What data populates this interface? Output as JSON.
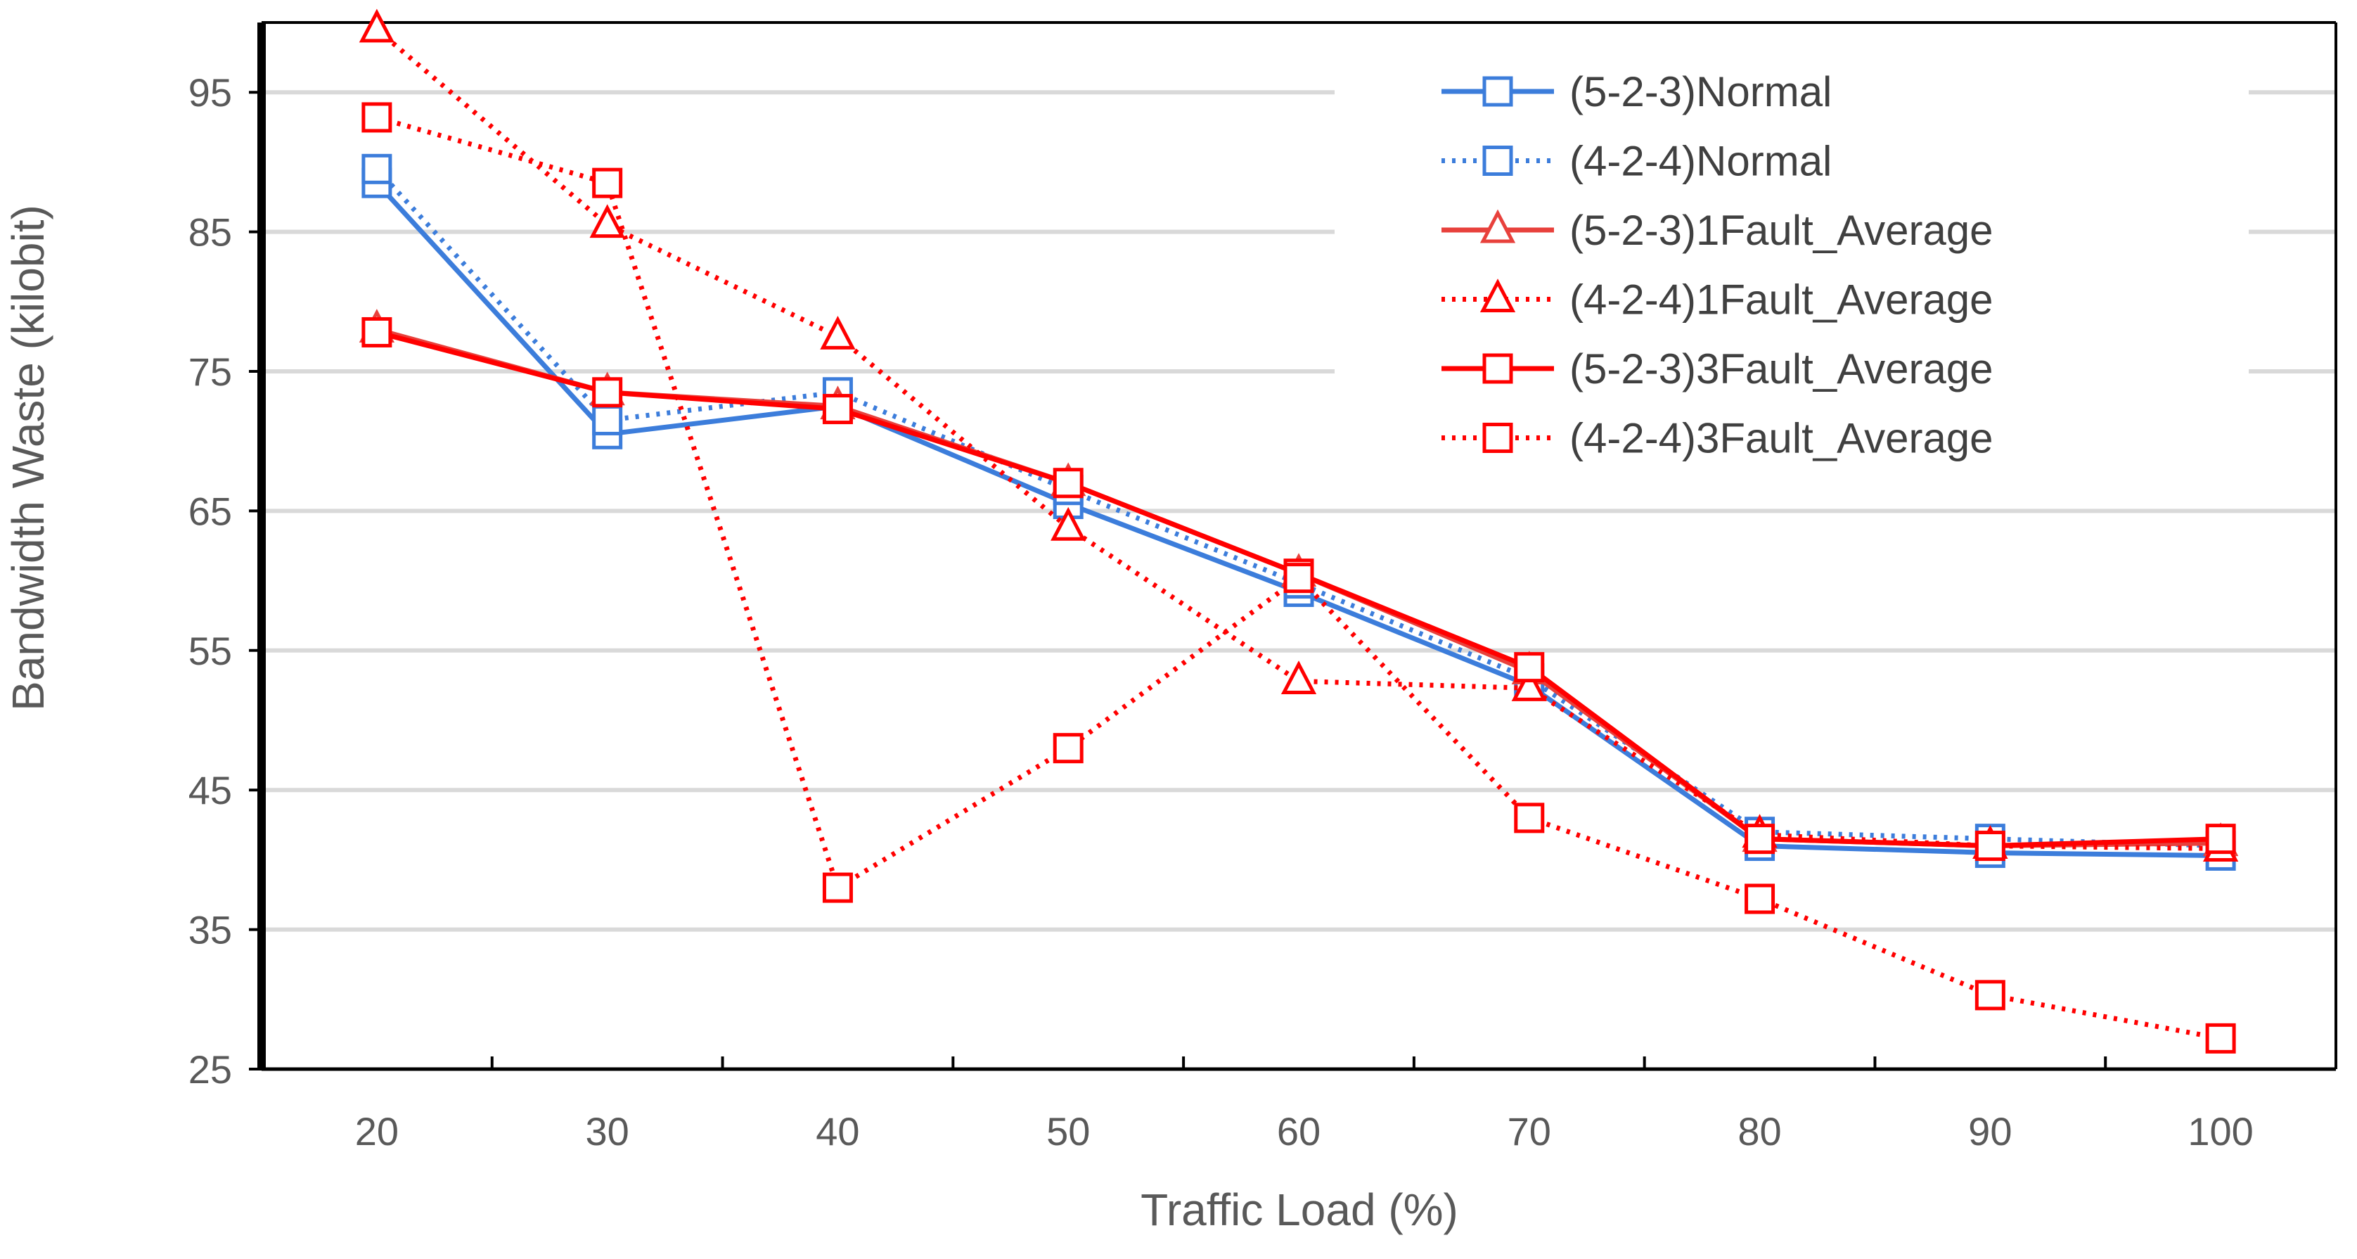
{
  "chart_data": {
    "type": "line",
    "title": "",
    "xlabel": "Traffic Load (%)",
    "ylabel": "Bandwidth Waste (kilobit)",
    "x": [
      20,
      30,
      40,
      50,
      60,
      70,
      80,
      90,
      100
    ],
    "xticks": [
      "20",
      "30",
      "40",
      "50",
      "60",
      "70",
      "80",
      "90",
      "100"
    ],
    "yticks": [
      "25",
      "35",
      "45",
      "55",
      "65",
      "75",
      "85",
      "95"
    ],
    "ylim": [
      25,
      100
    ],
    "grid": true,
    "legend_position": "top-right",
    "series": [
      {
        "name": "(5-2-3)Normal",
        "color": "#3C7DDB",
        "dash": "solid",
        "marker": "square",
        "values": [
          88.5,
          70.5,
          72.5,
          65.5,
          59.2,
          52.5,
          41.0,
          40.5,
          40.3
        ]
      },
      {
        "name": "(4-2-4)Normal",
        "color": "#3C7DDB",
        "dash": "dotted",
        "marker": "square",
        "values": [
          89.5,
          71.5,
          73.5,
          66.5,
          59.8,
          53.0,
          42.0,
          41.5,
          41.0
        ]
      },
      {
        "name": "(5-2-3)1Fault_Average",
        "color": "#E8413C",
        "dash": "solid",
        "marker": "triangle",
        "values": [
          78.0,
          73.5,
          72.5,
          67.0,
          60.5,
          53.5,
          41.5,
          41.0,
          41.2
        ]
      },
      {
        "name": "(4-2-4)1Fault_Average",
        "color": "#FF0000",
        "dash": "dotted",
        "marker": "triangle",
        "values": [
          99.5,
          85.5,
          77.5,
          63.8,
          52.8,
          52.3,
          41.8,
          41.0,
          40.8
        ]
      },
      {
        "name": "(5-2-3)3Fault_Average",
        "color": "#FF0000",
        "dash": "solid",
        "marker": "square",
        "values": [
          77.8,
          73.5,
          72.3,
          67.0,
          60.5,
          53.8,
          41.5,
          41.0,
          41.5
        ]
      },
      {
        "name": "(4-2-4)3Fault_Average",
        "color": "#FF0000",
        "dash": "dotted",
        "marker": "square",
        "values": [
          93.2,
          88.5,
          38.0,
          48.0,
          60.2,
          43.0,
          37.2,
          30.3,
          27.2
        ]
      }
    ]
  }
}
